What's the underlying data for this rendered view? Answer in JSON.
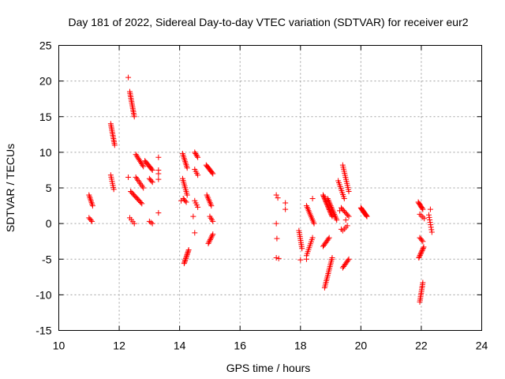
{
  "chart_data": {
    "type": "scatter",
    "title": "Day 181 of 2022, Sidereal Day-to-day VTEC variation (SDTVAR) for receiver eur2",
    "xlabel": "GPS time / hours",
    "ylabel": "SDTVAR / TECUs",
    "xlim": [
      10,
      24
    ],
    "ylim": [
      -15,
      25
    ],
    "xticks": [
      10,
      12,
      14,
      16,
      18,
      20,
      22,
      24
    ],
    "yticks": [
      -15,
      -10,
      -5,
      0,
      5,
      10,
      15,
      20,
      25
    ],
    "xtick_labels": [
      "10",
      "12",
      "14",
      "16",
      "18",
      "20",
      "22",
      "24"
    ],
    "ytick_labels": [
      "-15",
      "-10",
      "-5",
      "0",
      "5",
      "10",
      "15",
      "20",
      "25"
    ],
    "grid": true,
    "marker": "+",
    "color": "#ff0000",
    "segments": [
      {
        "x0": 11.0,
        "x1": 11.12,
        "y0": 4.0,
        "y1": 2.5,
        "n": 8
      },
      {
        "x0": 11.0,
        "x1": 11.1,
        "y0": 0.8,
        "y1": 0.3,
        "n": 4
      },
      {
        "x0": 11.72,
        "x1": 11.85,
        "y0": 14.0,
        "y1": 11.0,
        "n": 14
      },
      {
        "x0": 11.72,
        "x1": 11.82,
        "y0": 6.8,
        "y1": 4.8,
        "n": 8
      },
      {
        "x0": 12.35,
        "x1": 12.5,
        "y0": 18.5,
        "y1": 15.0,
        "n": 16
      },
      {
        "x0": 12.38,
        "x1": 12.75,
        "y0": 4.5,
        "y1": 2.8,
        "n": 12
      },
      {
        "x0": 12.35,
        "x1": 12.5,
        "y0": 0.8,
        "y1": 0.0,
        "n": 4
      },
      {
        "x0": 12.55,
        "x1": 12.8,
        "y0": 9.7,
        "y1": 8.0,
        "n": 10
      },
      {
        "x0": 12.55,
        "x1": 12.8,
        "y0": 6.5,
        "y1": 5.0,
        "n": 8
      },
      {
        "x0": 12.85,
        "x1": 13.1,
        "y0": 8.8,
        "y1": 7.5,
        "n": 10
      },
      {
        "x0": 13.0,
        "x1": 13.1,
        "y0": 6.3,
        "y1": 5.8,
        "n": 4
      },
      {
        "x0": 13.0,
        "x1": 13.1,
        "y0": 0.3,
        "y1": 0.0,
        "n": 3
      },
      {
        "x0": 14.1,
        "x1": 14.25,
        "y0": 9.8,
        "y1": 7.8,
        "n": 10
      },
      {
        "x0": 14.1,
        "x1": 14.25,
        "y0": 6.3,
        "y1": 4.0,
        "n": 10
      },
      {
        "x0": 14.12,
        "x1": 14.22,
        "y0": 3.5,
        "y1": 3.0,
        "n": 4
      },
      {
        "x0": 14.15,
        "x1": 14.3,
        "y0": -5.6,
        "y1": -3.7,
        "n": 12
      },
      {
        "x0": 14.5,
        "x1": 14.6,
        "y0": 10.0,
        "y1": 9.3,
        "n": 5
      },
      {
        "x0": 14.5,
        "x1": 14.6,
        "y0": 7.6,
        "y1": 6.8,
        "n": 4
      },
      {
        "x0": 14.5,
        "x1": 14.6,
        "y0": 3.2,
        "y1": 2.3,
        "n": 4
      },
      {
        "x0": 14.88,
        "x1": 15.1,
        "y0": 8.2,
        "y1": 7.0,
        "n": 10
      },
      {
        "x0": 14.9,
        "x1": 15.05,
        "y0": 4.0,
        "y1": 2.5,
        "n": 8
      },
      {
        "x0": 15.0,
        "x1": 15.1,
        "y0": 1.0,
        "y1": 0.3,
        "n": 4
      },
      {
        "x0": 14.95,
        "x1": 15.1,
        "y0": -2.8,
        "y1": -1.5,
        "n": 8
      },
      {
        "x0": 17.95,
        "x1": 18.05,
        "y0": -1.0,
        "y1": -3.5,
        "n": 10
      },
      {
        "x0": 18.2,
        "x1": 18.45,
        "y0": 2.5,
        "y1": 0.0,
        "n": 12
      },
      {
        "x0": 18.2,
        "x1": 18.4,
        "y0": -4.5,
        "y1": -2.0,
        "n": 10
      },
      {
        "x0": 18.75,
        "x1": 19.05,
        "y0": 4.0,
        "y1": 1.0,
        "n": 20
      },
      {
        "x0": 18.9,
        "x1": 19.2,
        "y0": 3.5,
        "y1": 0.5,
        "n": 16
      },
      {
        "x0": 18.75,
        "x1": 18.95,
        "y0": -3.2,
        "y1": -2.0,
        "n": 8
      },
      {
        "x0": 18.8,
        "x1": 19.05,
        "y0": -9.0,
        "y1": -4.8,
        "n": 18
      },
      {
        "x0": 19.25,
        "x1": 19.45,
        "y0": 6.0,
        "y1": 3.5,
        "n": 10
      },
      {
        "x0": 19.4,
        "x1": 19.6,
        "y0": 8.2,
        "y1": 4.5,
        "n": 14
      },
      {
        "x0": 19.35,
        "x1": 19.6,
        "y0": 2.2,
        "y1": 1.0,
        "n": 8
      },
      {
        "x0": 19.4,
        "x1": 19.55,
        "y0": -1.0,
        "y1": -0.3,
        "n": 4
      },
      {
        "x0": 19.4,
        "x1": 19.6,
        "y0": -6.2,
        "y1": -5.0,
        "n": 8
      },
      {
        "x0": 20.0,
        "x1": 20.2,
        "y0": 2.2,
        "y1": 1.0,
        "n": 14
      },
      {
        "x0": 21.9,
        "x1": 22.05,
        "y0": 3.0,
        "y1": 2.0,
        "n": 8
      },
      {
        "x0": 21.95,
        "x1": 22.1,
        "y0": 1.3,
        "y1": 0.7,
        "n": 4
      },
      {
        "x0": 21.95,
        "x1": 22.05,
        "y0": -2.0,
        "y1": -2.5,
        "n": 4
      },
      {
        "x0": 21.92,
        "x1": 22.08,
        "y0": -4.8,
        "y1": -3.3,
        "n": 10
      },
      {
        "x0": 21.95,
        "x1": 22.05,
        "y0": -11.0,
        "y1": -8.3,
        "n": 12
      },
      {
        "x0": 22.25,
        "x1": 22.35,
        "y0": 1.2,
        "y1": -1.2,
        "n": 8
      }
    ],
    "points": [
      [
        12.3,
        20.5
      ],
      [
        12.3,
        6.5
      ],
      [
        13.3,
        9.3
      ],
      [
        13.3,
        7.5
      ],
      [
        13.3,
        7.0
      ],
      [
        13.3,
        6.2
      ],
      [
        13.3,
        1.5
      ],
      [
        14.05,
        3.2
      ],
      [
        14.45,
        1.0
      ],
      [
        14.5,
        -1.3
      ],
      [
        17.2,
        4.0
      ],
      [
        17.25,
        3.6
      ],
      [
        17.2,
        0.0
      ],
      [
        17.22,
        -2.1
      ],
      [
        17.2,
        -4.8
      ],
      [
        17.28,
        -4.9
      ],
      [
        17.5,
        2.9
      ],
      [
        17.5,
        2.0
      ],
      [
        18.0,
        -5.1
      ],
      [
        18.2,
        -5.0
      ],
      [
        18.4,
        3.5
      ],
      [
        19.3,
        1.8
      ],
      [
        19.35,
        -0.8
      ],
      [
        19.5,
        0.5
      ],
      [
        22.3,
        2.0
      ]
    ]
  }
}
